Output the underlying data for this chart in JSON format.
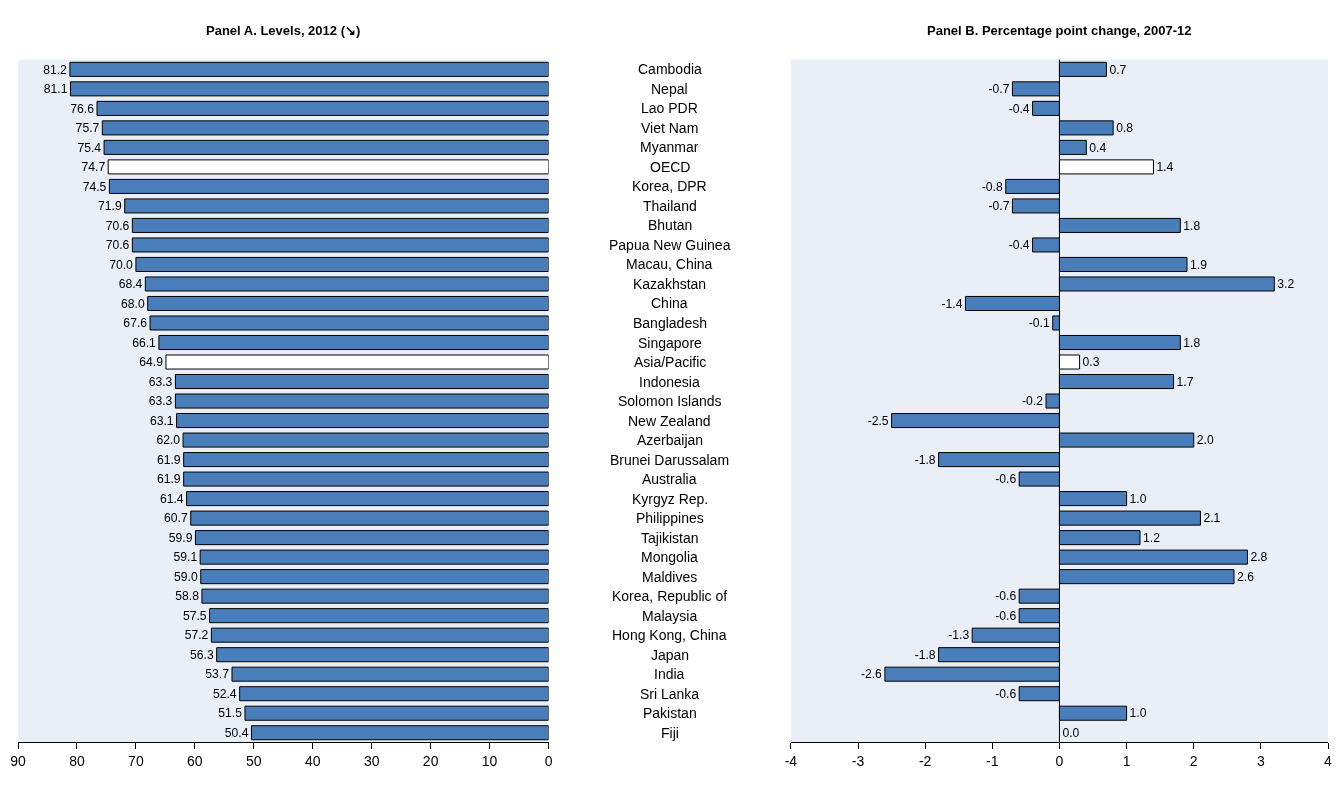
{
  "chart_data": [
    {
      "type": "bar",
      "orientation": "horizontal",
      "title": "Panel A. Levels, 2012 (↘)",
      "categories": [
        "Cambodia",
        "Nepal",
        "Lao PDR",
        "Viet Nam",
        "Myanmar",
        "OECD",
        "Korea, DPR",
        "Thailand",
        "Bhutan",
        "Papua New Guinea",
        "Macau, China",
        "Kazakhstan",
        "China",
        "Bangladesh",
        "Singapore",
        "Asia/Pacific",
        "Indonesia",
        "Solomon Islands",
        "New Zealand",
        "Azerbaijan",
        "Brunei Darussalam",
        "Australia",
        "Kyrgyz Rep.",
        "Philippines",
        "Tajikistan",
        "Mongolia",
        "Maldives",
        "Korea, Republic of",
        "Malaysia",
        "Hong Kong, China",
        "Japan",
        "India",
        "Sri Lanka",
        "Pakistan",
        "Fiji"
      ],
      "values": [
        81.2,
        81.1,
        76.6,
        75.7,
        75.4,
        74.7,
        74.5,
        71.9,
        70.6,
        70.6,
        70.0,
        68.4,
        68.0,
        67.6,
        66.1,
        64.9,
        63.3,
        63.3,
        63.1,
        62.0,
        61.9,
        61.9,
        61.4,
        60.7,
        59.9,
        59.1,
        59.0,
        58.8,
        57.5,
        57.2,
        56.3,
        53.7,
        52.4,
        51.5,
        50.4
      ],
      "value_labels": [
        "81.2",
        "81.1",
        "76.6",
        "75.7",
        "75.4",
        "74.7",
        "74.5",
        "71.9",
        "70.6",
        "70.6",
        "70.0",
        "68.4",
        "68.0",
        "67.6",
        "66.1",
        "64.9",
        "63.3",
        "63.3",
        "63.1",
        "62.0",
        "61.9",
        "61.9",
        "61.4",
        "60.7",
        "59.9",
        "59.1",
        "59.0",
        "58.8",
        "57.5",
        "57.2",
        "56.3",
        "53.7",
        "52.4",
        "51.5",
        "50.4"
      ],
      "colors": [
        "#4a7ebb",
        "#4a7ebb",
        "#4a7ebb",
        "#4a7ebb",
        "#4a7ebb",
        "#ffffff",
        "#4a7ebb",
        "#4a7ebb",
        "#4a7ebb",
        "#4a7ebb",
        "#4a7ebb",
        "#4a7ebb",
        "#4a7ebb",
        "#4a7ebb",
        "#4a7ebb",
        "#ffffff",
        "#4a7ebb",
        "#4a7ebb",
        "#4a7ebb",
        "#4a7ebb",
        "#4a7ebb",
        "#4a7ebb",
        "#4a7ebb",
        "#4a7ebb",
        "#4a7ebb",
        "#4a7ebb",
        "#4a7ebb",
        "#4a7ebb",
        "#4a7ebb",
        "#4a7ebb",
        "#4a7ebb",
        "#4a7ebb",
        "#4a7ebb",
        "#4a7ebb",
        "#4a7ebb"
      ],
      "xlim": [
        90,
        0
      ],
      "xticks": [
        90,
        80,
        70,
        60,
        50,
        40,
        30,
        20,
        10,
        0
      ],
      "grid": false
    },
    {
      "type": "bar",
      "orientation": "horizontal",
      "title": "Panel B. Percentage point change, 2007-12",
      "categories": [
        "Cambodia",
        "Nepal",
        "Lao PDR",
        "Viet Nam",
        "Myanmar",
        "OECD",
        "Korea, DPR",
        "Thailand",
        "Bhutan",
        "Papua New Guinea",
        "Macau, China",
        "Kazakhstan",
        "China",
        "Bangladesh",
        "Singapore",
        "Asia/Pacific",
        "Indonesia",
        "Solomon Islands",
        "New Zealand",
        "Azerbaijan",
        "Brunei Darussalam",
        "Australia",
        "Kyrgyz Rep.",
        "Philippines",
        "Tajikistan",
        "Mongolia",
        "Maldives",
        "Korea, Republic of",
        "Malaysia",
        "Hong Kong, China",
        "Japan",
        "India",
        "Sri Lanka",
        "Pakistan",
        "Fiji"
      ],
      "values": [
        0.7,
        -0.7,
        -0.4,
        0.8,
        0.4,
        1.4,
        -0.8,
        -0.7,
        1.8,
        -0.4,
        1.9,
        3.2,
        -1.4,
        -0.1,
        1.8,
        0.3,
        1.7,
        -0.2,
        -2.5,
        2.0,
        -1.8,
        -0.6,
        1.0,
        2.1,
        1.2,
        2.8,
        2.6,
        -0.6,
        -0.6,
        -1.3,
        -1.8,
        -2.6,
        -0.6,
        1.0,
        0.0
      ],
      "value_labels": [
        "0.7",
        "-0.7",
        "-0.4",
        "0.8",
        "0.4",
        "1.4",
        "-0.8",
        "-0.7",
        "1.8",
        "-0.4",
        "1.9",
        "3.2",
        "-1.4",
        "-0.1",
        "1.8",
        "0.3",
        "1.7",
        "-0.2",
        "-2.5",
        "2.0",
        "-1.8",
        "-0.6",
        "1.0",
        "2.1",
        "1.2",
        "2.8",
        "2.6",
        "-0.6",
        "-0.6",
        "-1.3",
        "-1.8",
        "-2.6",
        "-0.6",
        "1.0",
        "0.0"
      ],
      "colors": [
        "#4a7ebb",
        "#4a7ebb",
        "#4a7ebb",
        "#4a7ebb",
        "#4a7ebb",
        "#ffffff",
        "#4a7ebb",
        "#4a7ebb",
        "#4a7ebb",
        "#4a7ebb",
        "#4a7ebb",
        "#4a7ebb",
        "#4a7ebb",
        "#4a7ebb",
        "#4a7ebb",
        "#ffffff",
        "#4a7ebb",
        "#4a7ebb",
        "#4a7ebb",
        "#4a7ebb",
        "#4a7ebb",
        "#4a7ebb",
        "#4a7ebb",
        "#4a7ebb",
        "#4a7ebb",
        "#4a7ebb",
        "#4a7ebb",
        "#4a7ebb",
        "#4a7ebb",
        "#4a7ebb",
        "#4a7ebb",
        "#4a7ebb",
        "#4a7ebb",
        "#4a7ebb",
        "#4a7ebb"
      ],
      "xlim": [
        -4,
        4
      ],
      "xticks": [
        -4,
        -3,
        -2,
        -1,
        0,
        1,
        2,
        3,
        4
      ],
      "ref_lines": [
        {
          "axis": "x",
          "value": 0,
          "color": "#000000"
        }
      ],
      "grid": false,
      "tick_labels": "x"
    }
  ]
}
